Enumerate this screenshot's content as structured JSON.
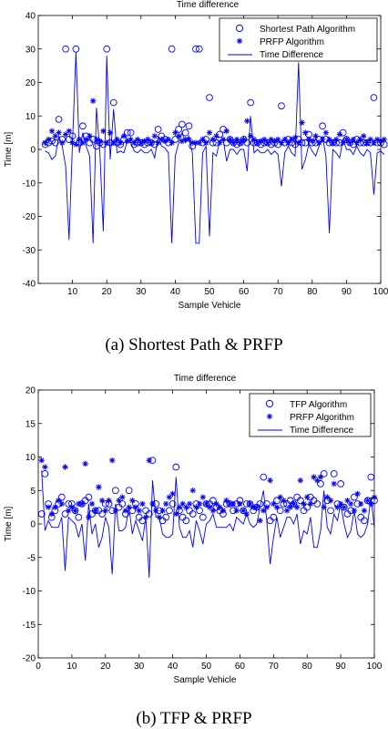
{
  "chart_data": [
    {
      "type": "line",
      "title": "Time difference",
      "xlabel": "Sample Vehicle",
      "ylabel": "Time [m]",
      "xlim": [
        0,
        100
      ],
      "ylim": [
        -40,
        40
      ],
      "xticks": [
        10,
        20,
        30,
        40,
        50,
        60,
        70,
        80,
        90,
        100
      ],
      "yticks": [
        -40,
        -30,
        -20,
        -10,
        0,
        10,
        20,
        30,
        40
      ],
      "legend_position": "top-right",
      "caption": "(a)  Shortest Path & PRFP",
      "series": [
        {
          "name": "Shortest Path Algorithm",
          "marker": "circle",
          "color": "#0000ff",
          "values": [
            1.5,
            2.0,
            2.5,
            2.0,
            9.0,
            3.0,
            30.0,
            3.0,
            4.0,
            30.0,
            2.0,
            7.0,
            4.0,
            2.0,
            3.0,
            1.0,
            2.0,
            1.5,
            30.0,
            2.0,
            14.0,
            2.0,
            1.5,
            3.0,
            5.0,
            5.0,
            1.5,
            2.0,
            2.0,
            1.5,
            2.0,
            2.0,
            1.5,
            6.0,
            4.0,
            3.0,
            2.0,
            30.0,
            3.0,
            6.0,
            7.5,
            5.0,
            7.0,
            1.0,
            30.0,
            30.0,
            2.0,
            3.0,
            15.5,
            2.0,
            2.0,
            4.5,
            6.0,
            2.0,
            3.0,
            2.0,
            1.5,
            2.0,
            3.0,
            2.0,
            14.0,
            2.0,
            2.0,
            1.5,
            2.0,
            2.0,
            1.5,
            2.0,
            1.5,
            13.0,
            2.0,
            3.0,
            2.0,
            1.5,
            3.0,
            2.0,
            2.0,
            4.5,
            2.0,
            2.0,
            3.0,
            7.0,
            3.0,
            2.0,
            2.0,
            2.0,
            2.0,
            5.0,
            3.0,
            2.0,
            1.5,
            3.0,
            2.0,
            2.0,
            2.0,
            2.0,
            15.5,
            2.0,
            2.0,
            1.5
          ]
        },
        {
          "name": "PRFP Algorithm",
          "marker": "star",
          "color": "#0000ff",
          "values": [
            2.0,
            3.0,
            5.5,
            4.0,
            5.0,
            2.0,
            4.5,
            5.5,
            2.0,
            1.5,
            3.0,
            2.0,
            3.0,
            4.0,
            14.5,
            3.0,
            2.5,
            5.5,
            2.0,
            5.0,
            2.0,
            3.0,
            2.0,
            4.0,
            2.5,
            3.0,
            2.0,
            3.0,
            2.0,
            2.5,
            3.0,
            2.0,
            4.0,
            2.0,
            3.0,
            2.5,
            3.0,
            2.0,
            5.0,
            4.0,
            2.5,
            3.0,
            3.0,
            2.0,
            2.0,
            2.0,
            3.0,
            2.0,
            5.0,
            3.0,
            4.0,
            2.0,
            3.0,
            5.5,
            3.0,
            2.0,
            3.0,
            2.0,
            3.0,
            8.5,
            4.0,
            3.0,
            2.0,
            2.5,
            3.0,
            2.0,
            3.0,
            2.5,
            3.0,
            2.0,
            3.0,
            2.0,
            3.0,
            3.5,
            2.0,
            8.0,
            5.0,
            3.0,
            2.5,
            4.0,
            2.0,
            3.0,
            5.0,
            3.0,
            2.0,
            3.0,
            4.5,
            2.0,
            3.0,
            2.0,
            3.0,
            2.0,
            3.0,
            4.0,
            2.0,
            3.0,
            2.0,
            3.0,
            2.5,
            3.0
          ]
        },
        {
          "name": "Time Difference",
          "marker": "line",
          "color": "#0000ff",
          "values": [
            -0.5,
            -1.0,
            -3.0,
            -2.0,
            4.0,
            1.0,
            -5.0,
            -27.0,
            2.0,
            29.0,
            -1.0,
            5.0,
            1.0,
            -2.0,
            -28.0,
            12.5,
            -1.0,
            -24.5,
            28.0,
            -3.0,
            12.0,
            -1.0,
            -0.5,
            -1.0,
            2.5,
            2.0,
            -0.5,
            -1.0,
            0.0,
            -1.0,
            -1.0,
            0.0,
            -2.5,
            4.0,
            1.0,
            0.5,
            -1.0,
            -28.0,
            -2.0,
            2.0,
            5.0,
            2.0,
            4.0,
            -1.0,
            -28.0,
            -28.0,
            -1.0,
            1.0,
            -26.0,
            -1.0,
            -2.0,
            2.5,
            3.0,
            -3.5,
            0.0,
            0.0,
            -1.5,
            0.0,
            0.0,
            -6.5,
            10.0,
            -1.0,
            0.0,
            -1.0,
            -1.0,
            0.0,
            -1.5,
            -0.5,
            -1.5,
            -11.0,
            -1.0,
            1.0,
            -1.0,
            -2.0,
            26.0,
            -6.0,
            -3.0,
            1.5,
            -0.5,
            -2.0,
            1.0,
            4.0,
            -2.0,
            -25.0,
            0.0,
            -1.0,
            -2.5,
            3.0,
            0.0,
            0.0,
            -1.5,
            1.0,
            -1.0,
            -2.0,
            0.0,
            -1.0,
            -13.5,
            -1.0,
            -0.5,
            -1.5
          ]
        }
      ]
    },
    {
      "type": "line",
      "title": "Time difference",
      "xlabel": "Sample Vehicle",
      "ylabel": "Time [m]",
      "xlim": [
        0,
        100
      ],
      "ylim": [
        -20,
        20
      ],
      "xticks": [
        0,
        10,
        20,
        30,
        40,
        50,
        60,
        70,
        80,
        90,
        100
      ],
      "yticks": [
        -20,
        -15,
        -10,
        -5,
        0,
        5,
        10,
        15,
        20
      ],
      "legend_position": "top-right",
      "caption": "(b)  TFP & PRFP",
      "series": [
        {
          "name": "TFP Algorithm",
          "marker": "circle",
          "color": "#0000ff",
          "values": [
            1.5,
            7.5,
            3.0,
            1.0,
            2.0,
            3.0,
            4.0,
            1.5,
            3.0,
            3.0,
            2.0,
            1.0,
            3.0,
            3.5,
            4.0,
            1.5,
            2.0,
            2.0,
            1.5,
            3.0,
            3.0,
            2.0,
            5.0,
            2.5,
            3.0,
            1.5,
            5.0,
            2.0,
            3.0,
            1.0,
            0.5,
            2.0,
            1.5,
            9.5,
            3.0,
            2.0,
            0.5,
            1.0,
            2.0,
            3.0,
            8.5,
            2.0,
            1.0,
            0.5,
            2.0,
            1.5,
            3.0,
            2.0,
            1.0,
            3.0,
            3.0,
            3.5,
            2.5,
            2.0,
            1.5,
            3.0,
            3.0,
            2.0,
            3.0,
            3.5,
            2.0,
            3.0,
            3.0,
            2.0,
            2.5,
            3.0,
            7.0,
            3.0,
            0.5,
            1.0,
            3.5,
            2.0,
            3.0,
            3.0,
            3.5,
            3.0,
            4.0,
            3.5,
            2.0,
            2.5,
            4.0,
            3.5,
            3.0,
            6.0,
            7.5,
            3.5,
            2.0,
            7.5,
            3.0,
            6.0,
            2.5,
            1.5,
            2.0,
            4.0,
            3.0,
            1.0,
            0.5,
            3.5,
            7.0,
            3.5
          ]
        },
        {
          "name": "PRFP Algorithm",
          "marker": "star",
          "color": "#0000ff",
          "values": [
            9.5,
            8.5,
            2.5,
            1.5,
            2.5,
            3.5,
            3.0,
            8.5,
            2.0,
            2.5,
            2.0,
            3.0,
            3.0,
            9.0,
            1.0,
            3.0,
            2.0,
            5.5,
            3.5,
            2.0,
            3.5,
            9.5,
            2.0,
            3.5,
            4.0,
            2.0,
            2.5,
            3.5,
            2.5,
            2.0,
            3.0,
            1.0,
            9.5,
            3.0,
            2.0,
            1.0,
            2.0,
            3.0,
            4.0,
            4.5,
            1.5,
            2.5,
            3.0,
            2.5,
            3.0,
            5.0,
            2.5,
            3.0,
            4.0,
            3.0,
            2.5,
            2.0,
            3.0,
            2.5,
            2.0,
            3.5,
            3.0,
            3.0,
            2.0,
            3.0,
            2.0,
            1.5,
            3.0,
            2.5,
            2.5,
            0.5,
            2.0,
            2.5,
            6.5,
            3.0,
            2.5,
            4.0,
            3.5,
            2.0,
            2.5,
            3.0,
            2.5,
            6.5,
            3.0,
            4.0,
            3.0,
            7.0,
            6.5,
            7.0,
            2.5,
            4.0,
            3.5,
            6.0,
            2.5,
            3.0,
            2.5,
            3.5,
            3.0,
            2.0,
            4.5,
            3.0,
            2.0,
            3.5,
            3.0,
            4.0
          ]
        },
        {
          "name": "Time Difference",
          "marker": "line",
          "color": "#0000ff",
          "values": [
            8.0,
            -1.0,
            0.5,
            -0.5,
            -0.5,
            -0.5,
            1.0,
            -7.0,
            1.0,
            0.5,
            0.0,
            -2.0,
            0.0,
            -5.5,
            3.0,
            -1.5,
            0.0,
            -3.5,
            -2.0,
            1.0,
            -0.5,
            -7.5,
            3.0,
            -1.0,
            -1.0,
            -0.5,
            2.5,
            -1.5,
            0.5,
            -1.0,
            -2.5,
            1.0,
            -8.0,
            6.5,
            1.0,
            1.0,
            -1.5,
            -2.0,
            -2.0,
            -1.5,
            7.0,
            -0.5,
            -2.0,
            -2.0,
            -1.0,
            -3.5,
            0.5,
            -1.0,
            -3.0,
            0.0,
            0.5,
            1.5,
            -0.5,
            -0.5,
            -0.5,
            -0.5,
            0.0,
            -1.0,
            1.0,
            0.5,
            0.0,
            1.5,
            0.0,
            -0.5,
            0.0,
            2.5,
            5.0,
            0.5,
            -6.0,
            -2.0,
            1.0,
            -2.0,
            -0.5,
            1.0,
            1.0,
            0.0,
            1.5,
            -3.0,
            -1.0,
            -1.5,
            1.0,
            -3.5,
            -3.5,
            -1.0,
            5.0,
            -0.5,
            -1.5,
            1.5,
            0.5,
            3.0,
            0.0,
            -2.0,
            -1.0,
            2.0,
            -1.5,
            -2.0,
            -1.5,
            0.0,
            4.0,
            -0.5
          ]
        }
      ]
    }
  ]
}
